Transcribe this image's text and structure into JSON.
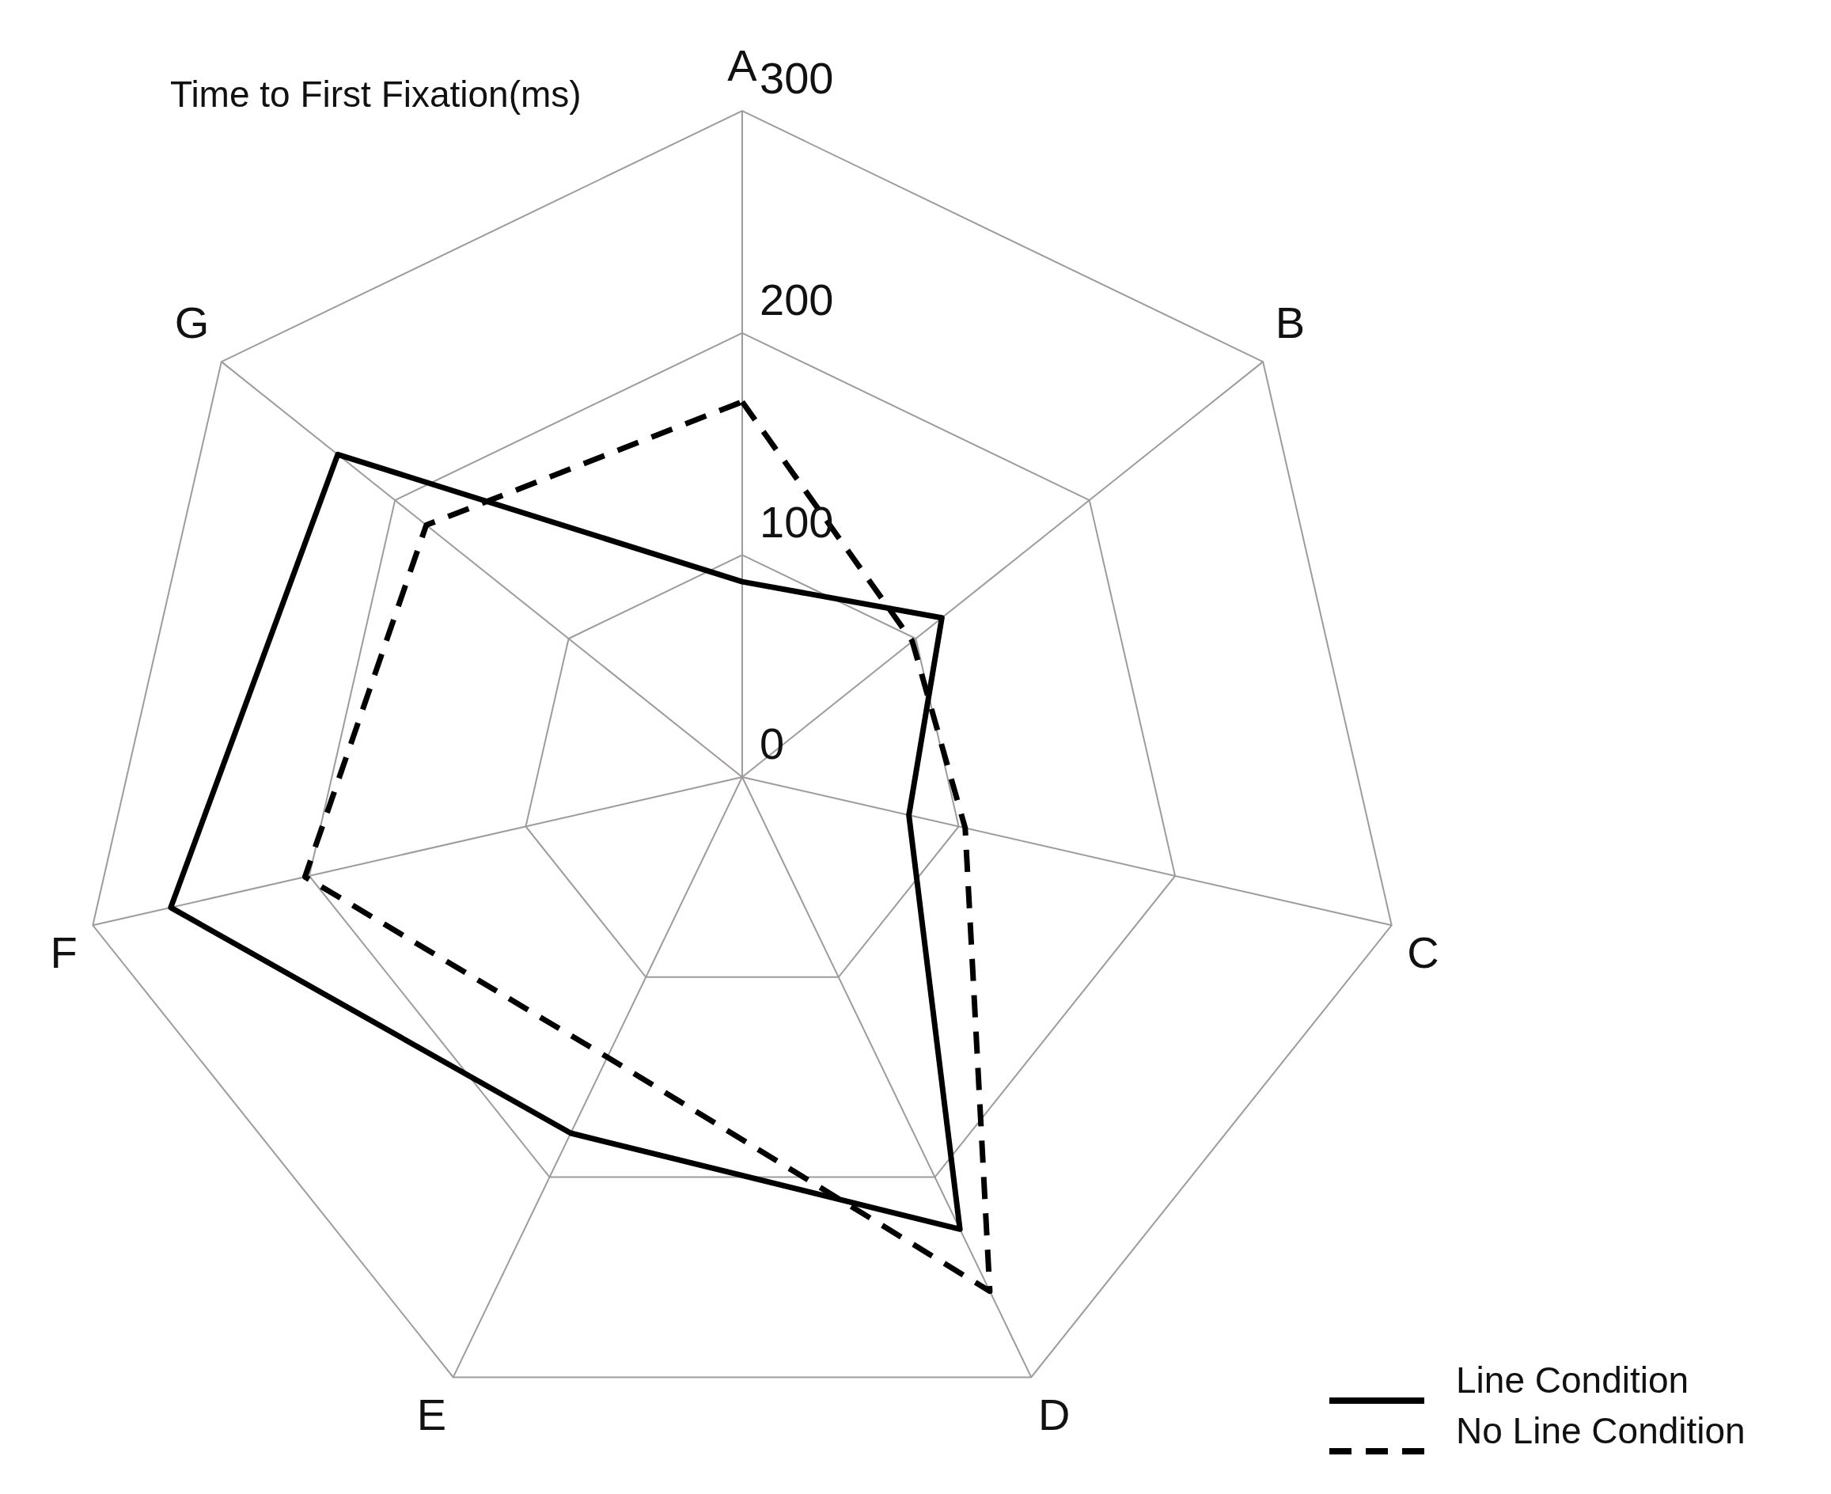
{
  "chart_data": {
    "type": "radar",
    "title": "Time to First Fixation(ms)",
    "categories": [
      "A",
      "B",
      "C",
      "D",
      "E",
      "F",
      "G"
    ],
    "series": [
      {
        "name": "Line Condition",
        "color": "#000000",
        "line_style": "solid",
        "values": [
          88,
          115,
          77,
          226,
          178,
          264,
          233
        ]
      },
      {
        "name": "No Line Condition",
        "color": "#000000",
        "line_style": "dashed",
        "values": [
          169,
          98,
          103,
          257,
          140,
          202,
          182
        ]
      }
    ],
    "ylim": [
      0,
      300
    ],
    "yticks": [
      0,
      100,
      200,
      300
    ],
    "grid": true,
    "legend": "bottom right",
    "marker": "none"
  }
}
